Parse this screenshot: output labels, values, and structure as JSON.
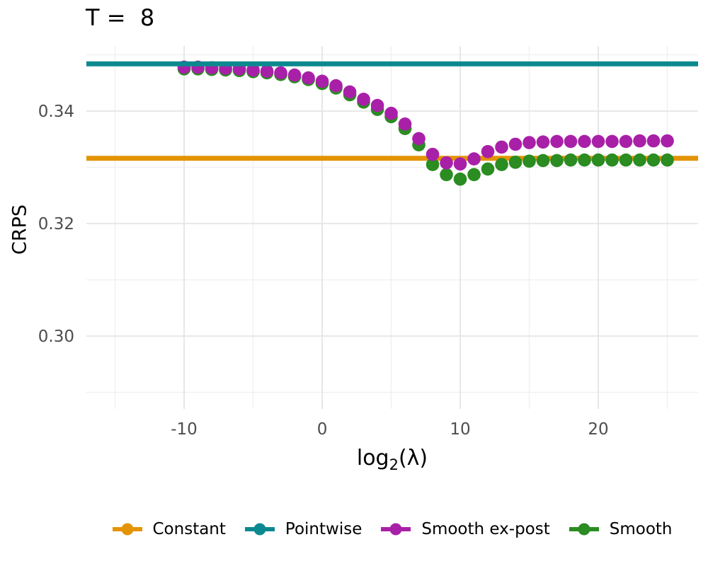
{
  "title": "T =  8",
  "axes": {
    "ylabel": "CRPS",
    "xlabel_pre": "log",
    "xlabel_sub": "2",
    "xlabel_post": "(λ)"
  },
  "colors": {
    "constant_orange": "#E39405",
    "pointwise_teal": "#0B898F",
    "smooth_expost_magenta": "#A920A8",
    "smooth_green": "#2A8C21",
    "grid_major": "#E4E4E4",
    "grid_minor": "#F0F0F0",
    "tick_text": "#4D4D4D"
  },
  "legend": {
    "items": [
      {
        "label": "Constant",
        "color": "#E39405"
      },
      {
        "label": "Pointwise",
        "color": "#0B898F"
      },
      {
        "label": "Smooth ex-post",
        "color": "#A920A8"
      },
      {
        "label": "Smooth",
        "color": "#2A8C21"
      }
    ]
  },
  "chart_data": {
    "type": "line",
    "title": "T =  8",
    "xlabel": "log2(lambda)",
    "ylabel": "CRPS",
    "xlim": [
      -17.08,
      27.23
    ],
    "ylim": [
      0.28705,
      0.35157
    ],
    "grid": true,
    "legend_position": "bottom",
    "x_ticks": {
      "values": [
        -10,
        0,
        10,
        20
      ],
      "labels": [
        "-10",
        "0",
        "10",
        "20"
      ]
    },
    "x_minor_ticks": [
      -15,
      -5,
      5,
      15,
      25
    ],
    "y_ticks": {
      "values": [
        0.3,
        0.32,
        0.34
      ],
      "labels": [
        "0.30",
        "0.32",
        "0.34"
      ]
    },
    "y_minor_ticks": [
      0.29,
      0.31,
      0.33,
      0.35
    ],
    "series": [
      {
        "name": "Constant",
        "type": "hline",
        "value": 0.3316,
        "color": "#E39405",
        "width": 7,
        "layer": 1
      },
      {
        "name": "Smooth",
        "type": "points",
        "color": "#2A8C21",
        "radius": 9.3,
        "layer": 2,
        "x": [
          -10,
          -9,
          -8,
          -7,
          -6,
          -5,
          -4,
          -3,
          -2,
          -1,
          0,
          1,
          2,
          3,
          4,
          5,
          6,
          7,
          8,
          9,
          10,
          11,
          12,
          13,
          14,
          15,
          16,
          17,
          18,
          19,
          20,
          21,
          22,
          23,
          24,
          25
        ],
        "y": [
          0.3475,
          0.3475,
          0.3474,
          0.3473,
          0.3472,
          0.347,
          0.3468,
          0.3465,
          0.3461,
          0.3456,
          0.3449,
          0.3441,
          0.3429,
          0.3416,
          0.3403,
          0.339,
          0.3369,
          0.334,
          0.3305,
          0.3287,
          0.3279,
          0.3287,
          0.3297,
          0.3305,
          0.3309,
          0.3311,
          0.3312,
          0.3312,
          0.3313,
          0.3313,
          0.3313,
          0.3313,
          0.3313,
          0.3313,
          0.3313,
          0.3313
        ]
      },
      {
        "name": "Smooth ex-post",
        "type": "points",
        "color": "#A920A8",
        "radius": 9.3,
        "layer": 3,
        "x": [
          -10,
          -9,
          -8,
          -7,
          -6,
          -5,
          -4,
          -3,
          -2,
          -1,
          0,
          1,
          2,
          3,
          4,
          5,
          6,
          7,
          8,
          9,
          10,
          11,
          12,
          13,
          14,
          15,
          16,
          17,
          18,
          19,
          20,
          21,
          22,
          23,
          24,
          25
        ],
        "y": [
          0.3478,
          0.3478,
          0.3477,
          0.3476,
          0.3475,
          0.3473,
          0.3471,
          0.3468,
          0.3464,
          0.3459,
          0.3453,
          0.3445,
          0.3434,
          0.3421,
          0.341,
          0.3396,
          0.3377,
          0.3351,
          0.3323,
          0.3308,
          0.3306,
          0.3315,
          0.3328,
          0.3336,
          0.3341,
          0.3344,
          0.3345,
          0.3346,
          0.3346,
          0.3346,
          0.3346,
          0.3346,
          0.3346,
          0.3347,
          0.3347,
          0.3347
        ]
      },
      {
        "name": "Pointwise",
        "type": "hline",
        "value": 0.3484,
        "color": "#0B898F",
        "width": 7,
        "layer": 4
      }
    ]
  }
}
